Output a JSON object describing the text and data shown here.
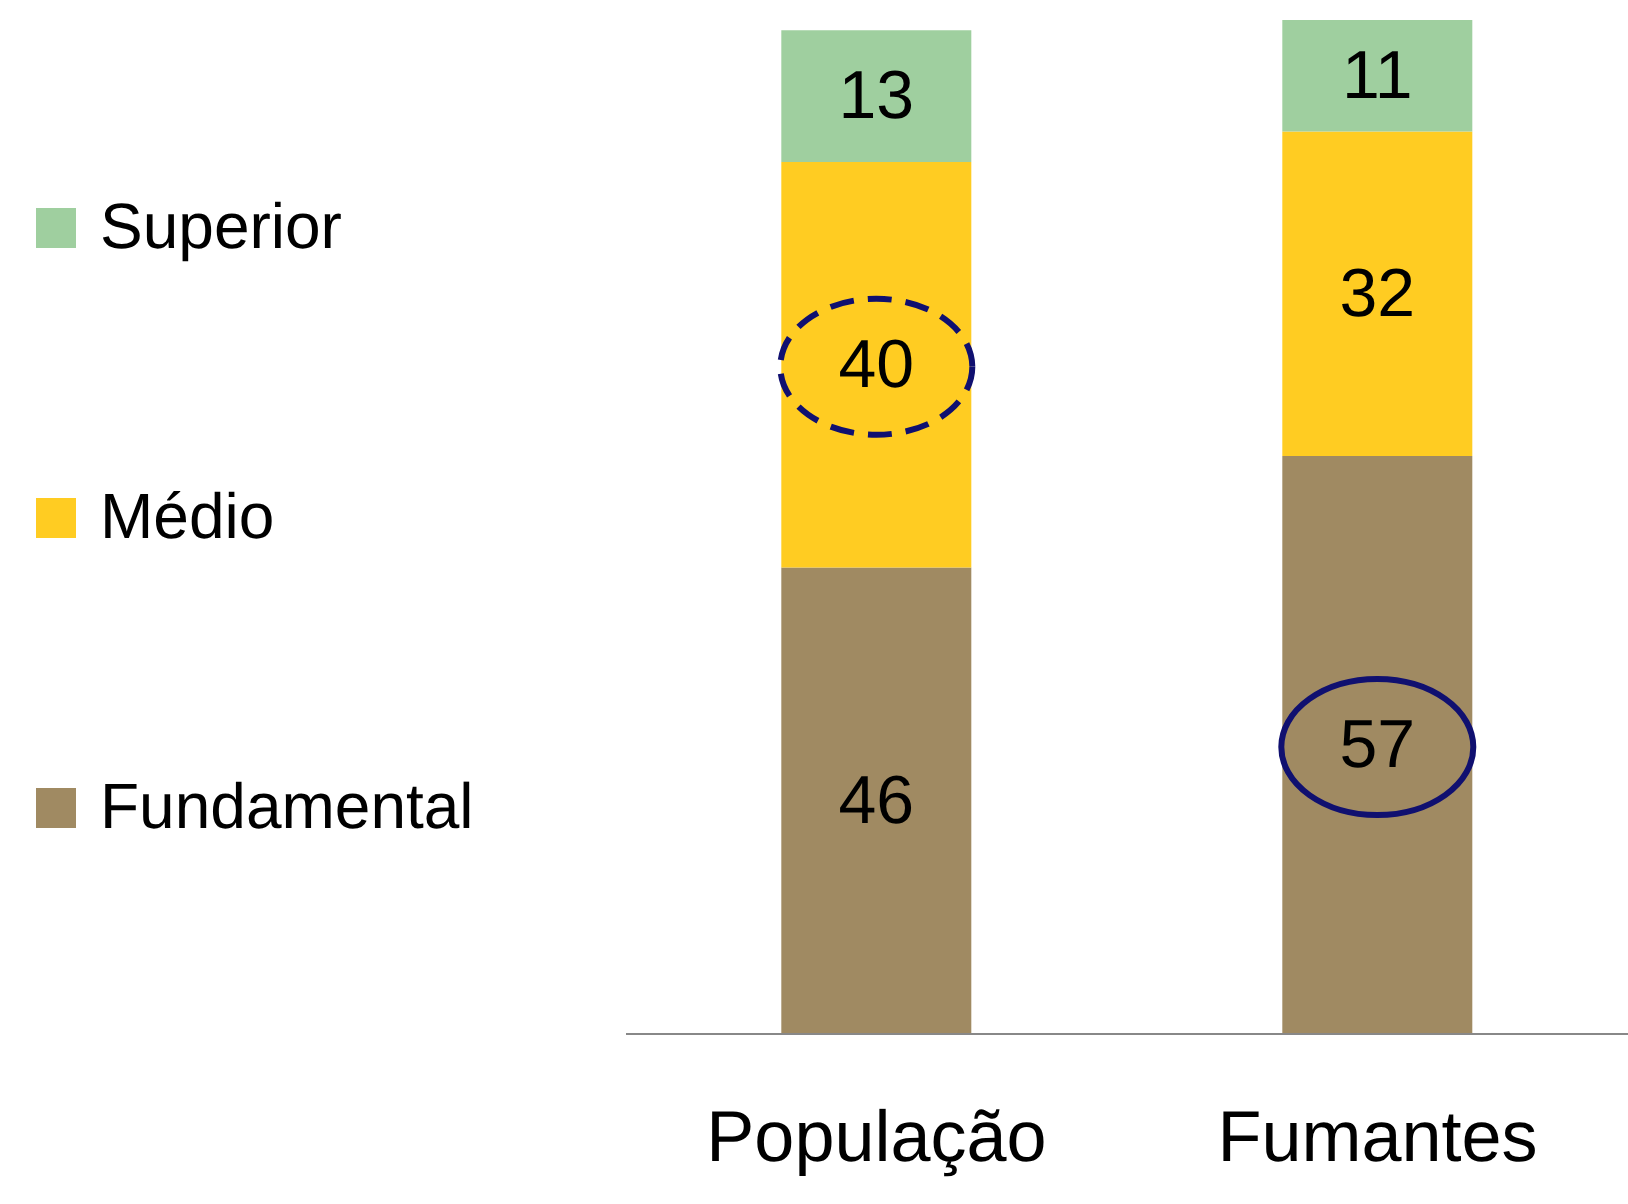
{
  "chart_data": {
    "type": "bar",
    "stacked": true,
    "categories": [
      "População",
      "Fumantes"
    ],
    "series": [
      {
        "name": "Fundamental",
        "color": "#a08a62",
        "values": [
          46,
          57
        ]
      },
      {
        "name": "Médio",
        "color": "#ffcc22",
        "values": [
          40,
          32
        ]
      },
      {
        "name": "Superior",
        "color": "#9fcf9f",
        "values": [
          13,
          11
        ]
      }
    ],
    "data_labels": true,
    "legend": "left"
  }
}
